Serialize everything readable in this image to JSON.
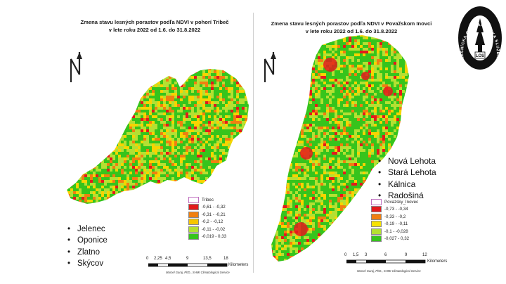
{
  "left_map": {
    "title_line1": "Zmena stavu lesných porastov podľa NDVI v pohorí Tribeč",
    "title_line2": "v lete roku 2022 od 1.6. do 31.8.2022",
    "legend": {
      "layer_name": "Tribec",
      "classes": [
        {
          "label": "-0,61 - -0,32",
          "color": "#e41a1c"
        },
        {
          "label": "-0,31 - -0,21",
          "color": "#f07f10"
        },
        {
          "label": "-0,2 - -0,12",
          "color": "#f7c600"
        },
        {
          "label": "-0,11 - -0,02",
          "color": "#b4e032"
        },
        {
          "label": "-0,019 - 0,33",
          "color": "#36c41c"
        }
      ]
    },
    "scale_ticks": [
      "0",
      "2,25",
      "4,5",
      "9",
      "13,5",
      "18"
    ],
    "scale_unit": "Kilometers",
    "credit": "Marcel Garaj, PhD., SHMI Climatological Service",
    "places": [
      "Jelenec",
      "Oponice",
      "Zlatno",
      "Skýcov"
    ]
  },
  "right_map": {
    "title_line1": "Zmena stavu lesných porastov podľa NDVI v Považskom Inovci",
    "title_line2": "v lete roku 2022 od 1.6. do 31.8.2022",
    "legend": {
      "layer_name": "Povazsky_Inovec",
      "classes": [
        {
          "label": "-0,73 - -0,34",
          "color": "#e41a1c"
        },
        {
          "label": "-0,33 - -0,2",
          "color": "#f07f10"
        },
        {
          "label": "-0,19 - -0,11",
          "color": "#f7e200"
        },
        {
          "label": "-0,1 - -0,028",
          "color": "#b4e032"
        },
        {
          "label": "-0,027 - 0,32",
          "color": "#36c41c"
        }
      ]
    },
    "scale_ticks": [
      "0",
      "1,5",
      "3",
      "6",
      "9",
      "12"
    ],
    "scale_unit": "Kilometers",
    "credit": "Marcel Garaj, PhD., SHMI Climatological Service",
    "places": [
      "Nová Lehota",
      "Stará Lehota",
      "Kálnica",
      "Radošiná"
    ]
  },
  "logo": {
    "text": "LESNÍCKA OCHRANÁRSKA SLUŽBA",
    "monogram": "LOS"
  },
  "colors": {
    "red": "#e41a1c",
    "orange": "#f07f10",
    "yellow": "#f7d400",
    "lightgreen": "#b4e032",
    "green": "#36c41c"
  }
}
